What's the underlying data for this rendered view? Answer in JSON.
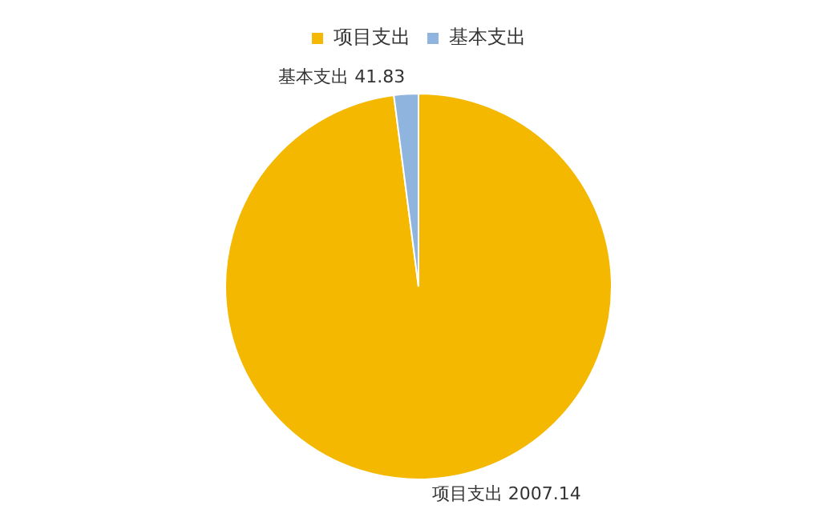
{
  "chart_data": {
    "type": "pie",
    "categories": [
      "项目支出",
      "基本支出"
    ],
    "values": [
      2007.14,
      41.83
    ],
    "value_labels": [
      "项目支出 2007.14",
      "基本支出 41.83"
    ],
    "colors": [
      "#f4b800",
      "#8fb4de"
    ],
    "legend": "top"
  }
}
